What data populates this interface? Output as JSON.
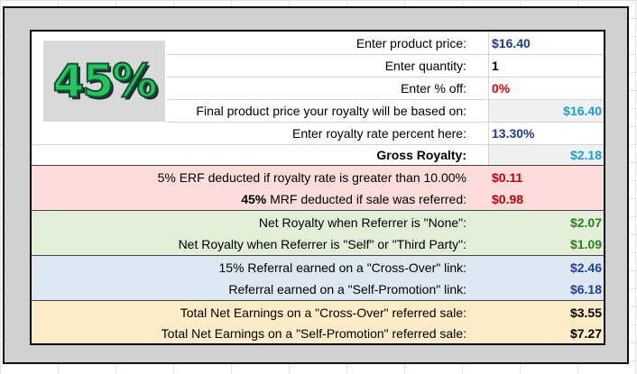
{
  "badge": {
    "percent": "45%"
  },
  "inputs": {
    "price_label": "Enter product price:",
    "price_value": "$16.40",
    "quantity_label": "Enter quantity:",
    "quantity_value": "1",
    "off_label": "Enter % off:",
    "off_value": "0%",
    "final_label": "Final product price your royalty will be based on:",
    "final_value": "$16.40",
    "rate_label": "Enter royalty rate percent here:",
    "rate_value": "13.30%",
    "gross_label": "Gross Royalty:",
    "gross_value": "$2.18"
  },
  "deductions": {
    "erf_label": "5% ERF deducted if royalty rate is greater than 10.00%",
    "erf_value": "$0.11",
    "mrf_pct": "45%",
    "mrf_label": " MRF deducted if sale was referred:",
    "mrf_value": "$0.98"
  },
  "net": {
    "none_label": "Net Royalty when Referrer is \"None\":",
    "none_value": "$2.07",
    "self_label": "Net Royalty when Referrer is \"Self\" or \"Third Party\":",
    "self_value": "$1.09"
  },
  "referral": {
    "cross_label": "15% Referral earned on a \"Cross-Over\" link:",
    "cross_value": "$2.46",
    "promo_label": "Referral earned on a \"Self-Promotion\" link:",
    "promo_value": "$6.18"
  },
  "totals": {
    "cross_label": "Total Net Earnings on a \"Cross-Over\" referred sale:",
    "cross_value": "$3.55",
    "promo_label": "Total Net Earnings on a \"Self-Promotion\" referred sale:",
    "promo_value": "$7.27"
  }
}
